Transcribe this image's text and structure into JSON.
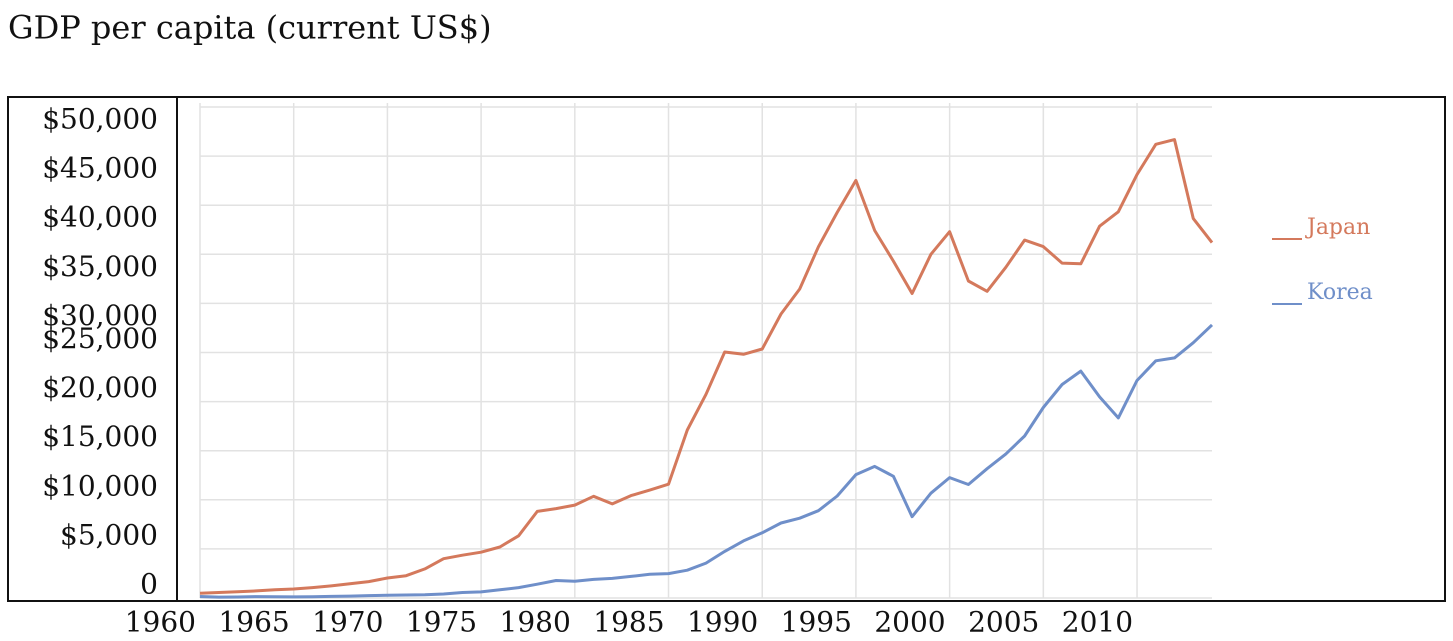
{
  "chart_data": {
    "type": "line",
    "title": "GDP per capita (current US$)",
    "x": [
      1960,
      1961,
      1962,
      1963,
      1964,
      1965,
      1966,
      1967,
      1968,
      1969,
      1970,
      1971,
      1972,
      1973,
      1974,
      1975,
      1976,
      1977,
      1978,
      1979,
      1980,
      1981,
      1982,
      1983,
      1984,
      1985,
      1986,
      1987,
      1988,
      1989,
      1990,
      1991,
      1992,
      1993,
      1994,
      1995,
      1996,
      1997,
      1998,
      1999,
      2000,
      2001,
      2002,
      2003,
      2004,
      2005,
      2006,
      2007,
      2008,
      2009,
      2010,
      2011,
      2012,
      2013,
      2014
    ],
    "series": [
      {
        "name": "Japan",
        "color": "#d4795c",
        "values": [
          479,
          564,
          634,
          718,
          835,
          919,
          1059,
          1229,
          1451,
          1669,
          2037,
          2272,
          2967,
          3997,
          4354,
          4659,
          5197,
          6335,
          8821,
          9105,
          9463,
          10361,
          9578,
          10425,
          10984,
          11584,
          17112,
          20745,
          25051,
          24813,
          25359,
          28925,
          31465,
          35766,
          39269,
          42522,
          37423,
          34304,
          31008,
          35004,
          37300,
          32281,
          31236,
          33691,
          36442,
          35781,
          34102,
          34034,
          37866,
          39323,
          43118,
          46204,
          46679,
          38634,
          36194
        ]
      },
      {
        "name": "Korea",
        "color": "#6f8fc9",
        "values": [
          156,
          94,
          106,
          146,
          124,
          109,
          131,
          161,
          198,
          243,
          279,
          301,
          323,
          406,
          563,
          617,
          834,
          1055,
          1406,
          1784,
          1711,
          1893,
          1994,
          2199,
          2413,
          2482,
          2835,
          3555,
          4749,
          5817,
          6642,
          7637,
          8127,
          8885,
          10385,
          12565,
          13404,
          12398,
          8281,
          10672,
          12263,
          11563,
          13165,
          14673,
          16496,
          19403,
          21743,
          23102,
          20476,
          18339,
          22151,
          24156,
          24454,
          25998,
          27811
        ]
      }
    ],
    "xlim": [
      1960,
      2014
    ],
    "xticks": [
      1960,
      1965,
      1970,
      1975,
      1980,
      1985,
      1990,
      1995,
      2000,
      2005,
      2010
    ],
    "ylim": [
      0,
      50000
    ],
    "yticks": [
      0,
      {
        "value": 5000,
        "label": "$5,000"
      },
      {
        "value": 10000,
        "label": "$10,000"
      },
      {
        "value": 15000,
        "label": "$15,000"
      },
      {
        "value": 20000,
        "label": "$20,000"
      },
      {
        "value": 25000,
        "label": "$25,000"
      },
      {
        "value": 30000,
        "label": "$30,000"
      },
      {
        "value": 35000,
        "label": "$35,000"
      },
      {
        "value": 40000,
        "label": "$40,000"
      },
      {
        "value": 45000,
        "label": "$45,000"
      },
      {
        "value": 50000,
        "label": "$50,000"
      }
    ],
    "grid": true
  }
}
